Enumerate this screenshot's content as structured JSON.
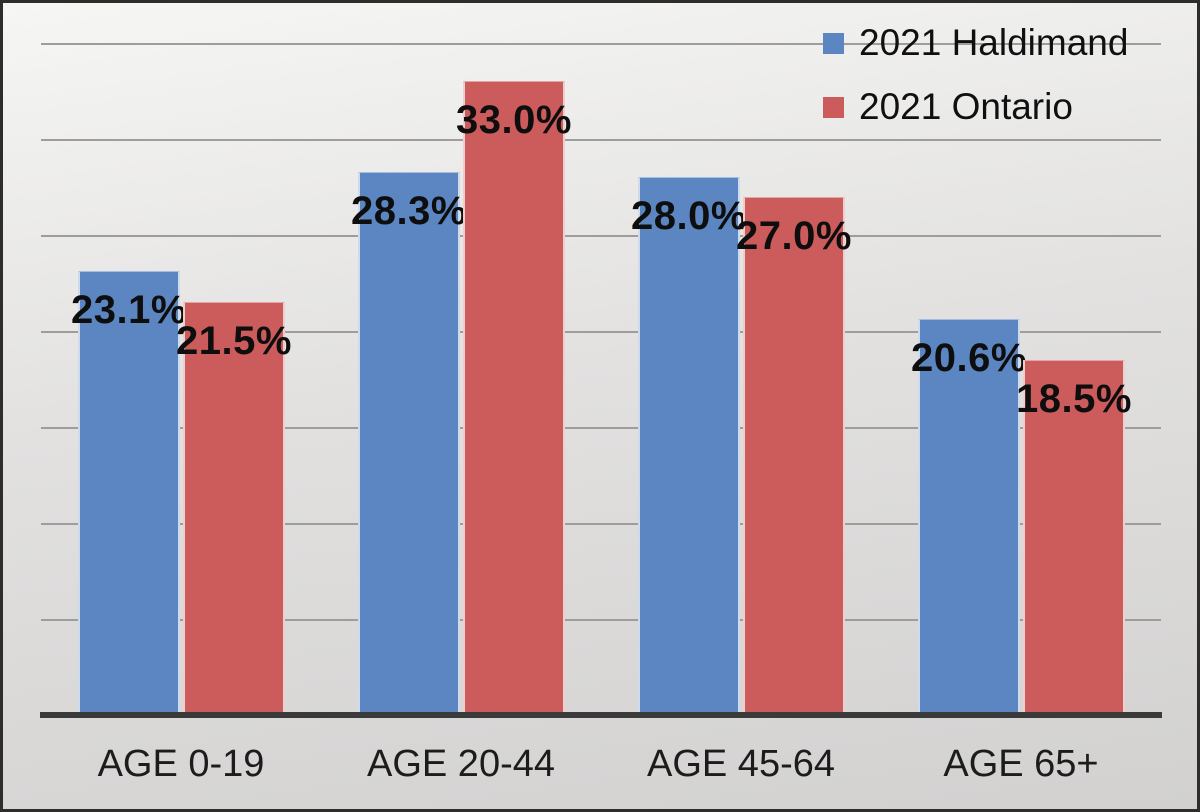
{
  "frame": {
    "background_top": "#f6f6f5",
    "background_mid": "#e2e1e0",
    "background_bottom": "#d2d1d0",
    "border_color": "#2e2d2c"
  },
  "chart_data": {
    "type": "bar",
    "title": "",
    "xlabel": "",
    "ylabel": "",
    "categories": [
      "AGE 0-19",
      "AGE 20-44",
      "AGE 45-64",
      "AGE 65+"
    ],
    "series": [
      {
        "name": "2021 Haldimand",
        "color": "#5b86c2",
        "values": [
          23.1,
          28.3,
          28.0,
          20.6
        ]
      },
      {
        "name": "2021 Ontario",
        "color": "#cc5b5c",
        "values": [
          21.5,
          33.0,
          27.0,
          18.5
        ]
      }
    ],
    "value_labels": {
      "2021 Haldimand": [
        "23.1%",
        "28.3%",
        "28.0%",
        "20.6%"
      ],
      "2021 Ontario": [
        "21.5%",
        "33.0%",
        "27.0%",
        "18.5%"
      ]
    },
    "ylim": [
      0,
      35
    ],
    "gridline_step": 5,
    "grid": true,
    "y_tick_labels_visible": false,
    "legend_position": "top-right",
    "gridline_color": "#9e9d9c",
    "axis_line_color": "#3a3a3a",
    "value_label_color": "#0e0e0e",
    "category_label_color": "#1c1c1c"
  }
}
